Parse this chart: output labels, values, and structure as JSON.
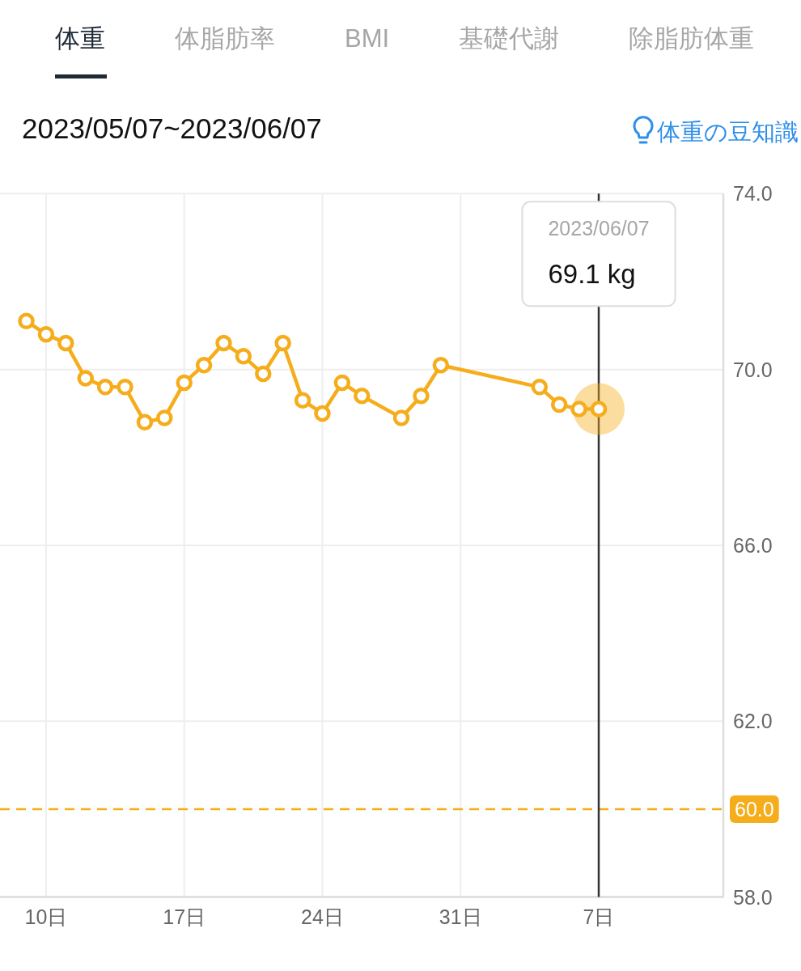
{
  "chart_data": {
    "type": "line",
    "title": "体重",
    "subtitle": "2023/05/07~2023/06/07",
    "annotations": [
      "体脂肪率",
      "BMI",
      "基礎代謝",
      "除脂肪体重",
      "体重の豆知識",
      "2023/06/07",
      "69.1 kg"
    ],
    "x": [
      "2023-05-09",
      "2023-05-10",
      "2023-05-11",
      "2023-05-12",
      "2023-05-13",
      "2023-05-14",
      "2023-05-15",
      "2023-05-16",
      "2023-05-17",
      "2023-05-18",
      "2023-05-19",
      "2023-05-20",
      "2023-05-21",
      "2023-05-22",
      "2023-05-23",
      "2023-05-24",
      "2023-05-25",
      "2023-05-26",
      "2023-05-28",
      "2023-05-29",
      "2023-05-30",
      "2023-06-04",
      "2023-06-05",
      "2023-06-06",
      "2023-06-07"
    ],
    "values": [
      71.1,
      70.8,
      70.6,
      69.8,
      69.6,
      69.6,
      68.8,
      68.9,
      69.7,
      70.1,
      70.6,
      70.3,
      69.9,
      70.6,
      69.3,
      69.0,
      69.7,
      69.4,
      68.9,
      69.4,
      70.1,
      69.6,
      69.2,
      69.1,
      69.1
    ],
    "color": "#f5ad1b",
    "marker": "circle",
    "grid": true,
    "xlim": [
      "2023-05-07T16:00",
      "2023-06-13T07:30"
    ],
    "xticks": [
      {
        "value": "2023-05-10",
        "label": "10日"
      },
      {
        "value": "2023-05-17",
        "label": "17日"
      },
      {
        "value": "2023-05-24",
        "label": "24日"
      },
      {
        "value": "2023-05-31",
        "label": "31日"
      },
      {
        "value": "2023-06-07",
        "label": "7日"
      }
    ],
    "ylim": [
      58,
      74
    ],
    "yticks": [
      {
        "value": 74,
        "label": "74.0"
      },
      {
        "value": 70,
        "label": "70.0"
      },
      {
        "value": 66,
        "label": "66.0"
      },
      {
        "value": 62,
        "label": "62.0"
      },
      {
        "value": 58,
        "label": "58.0"
      }
    ],
    "ref_lines": [
      {
        "axis": "y",
        "value": 60,
        "label": "60.0",
        "color": "#f5ad1b",
        "line_style": "dashed"
      },
      {
        "axis": "x",
        "value": "2023-06-07",
        "color": "#333333"
      }
    ]
  }
}
